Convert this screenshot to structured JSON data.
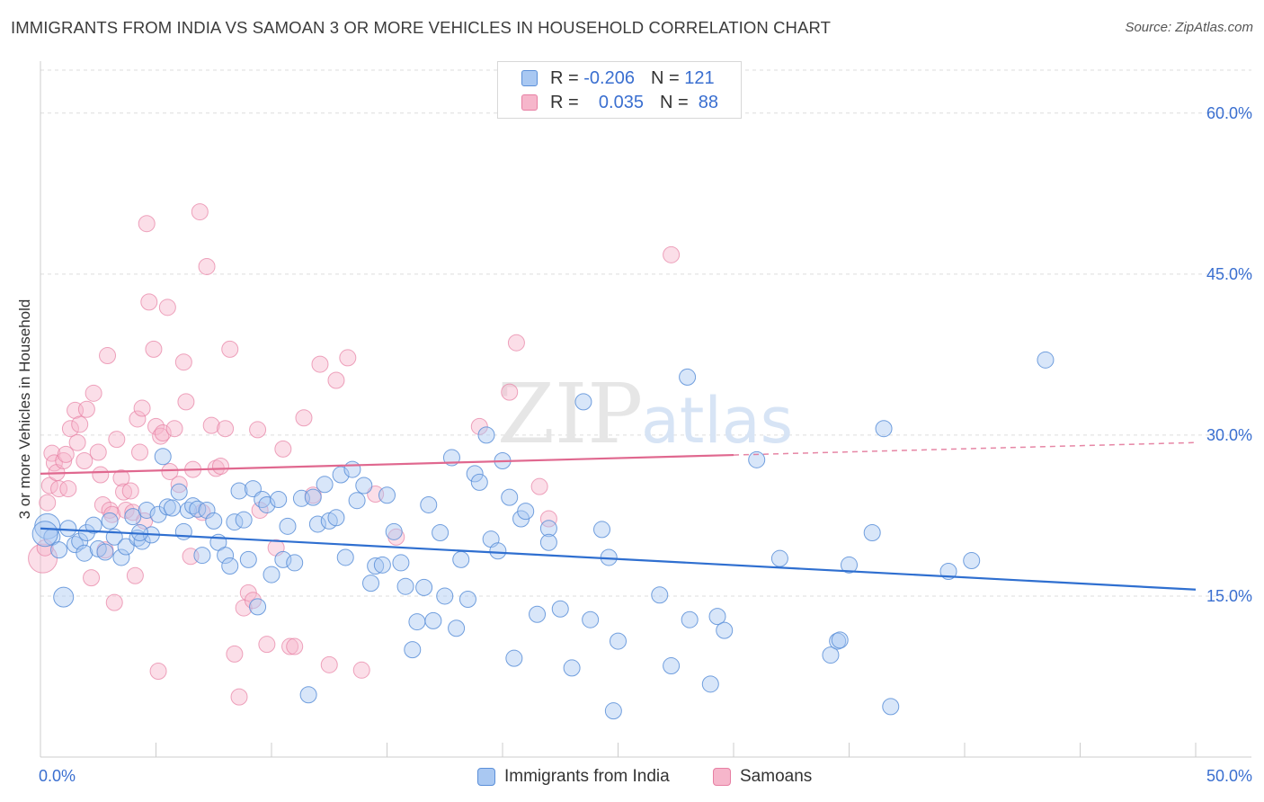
{
  "title": "IMMIGRANTS FROM INDIA VS SAMOAN 3 OR MORE VEHICLES IN HOUSEHOLD CORRELATION CHART",
  "source": "Source: ZipAtlas.com",
  "watermark": {
    "zip": "ZIP",
    "atlas": "atlas"
  },
  "legend": {
    "r_label": "R =",
    "n_label": "N =",
    "rows": [
      {
        "r": "-0.206",
        "n": "121"
      },
      {
        "r": "0.035",
        "n": "88"
      }
    ]
  },
  "colors": {
    "india_fill": "#a9c8f2",
    "india_stroke": "#5b8fd8",
    "india_line": "#2f6fd0",
    "samoan_fill": "#f6b6cb",
    "samoan_stroke": "#e77fa3",
    "samoan_line": "#e0688f",
    "tick_label": "#3a6fd0",
    "grid": "#dddddd"
  },
  "chart_data": {
    "type": "scatter",
    "title": "IMMIGRANTS FROM INDIA VS SAMOAN 3 OR MORE VEHICLES IN HOUSEHOLD CORRELATION CHART",
    "xlabel": "",
    "ylabel": "3 or more Vehicles in Household",
    "xlim": [
      0,
      50
    ],
    "ylim": [
      0,
      64
    ],
    "x_tick_labels": [
      "0.0%",
      "50.0%"
    ],
    "y_ticks": [
      15,
      30,
      45,
      60
    ],
    "y_tick_labels": [
      "15.0%",
      "30.0%",
      "45.0%",
      "60.0%"
    ],
    "grid": true,
    "legend_position": "top-center",
    "series": [
      {
        "name": "Immigrants from India",
        "r": -0.206,
        "n": 121,
        "trend": {
          "x": [
            0,
            50
          ],
          "y": [
            21.3,
            15.6
          ],
          "dashed_from": null
        },
        "points": [
          [
            0.3,
            21.5
          ],
          [
            0.5,
            20.5
          ],
          [
            0.8,
            19.3
          ],
          [
            1.0,
            14.9
          ],
          [
            1.2,
            21.3
          ],
          [
            1.5,
            19.8
          ],
          [
            1.7,
            20.1
          ],
          [
            1.9,
            19.0
          ],
          [
            2.0,
            20.9
          ],
          [
            2.3,
            21.6
          ],
          [
            2.5,
            19.4
          ],
          [
            2.8,
            19.1
          ],
          [
            3.0,
            22.0
          ],
          [
            3.2,
            20.5
          ],
          [
            3.5,
            18.6
          ],
          [
            3.7,
            19.6
          ],
          [
            4.0,
            22.4
          ],
          [
            4.2,
            20.4
          ],
          [
            4.4,
            20.1
          ],
          [
            4.6,
            23.0
          ],
          [
            4.8,
            20.7
          ],
          [
            5.1,
            22.6
          ],
          [
            5.3,
            28.0
          ],
          [
            5.5,
            23.3
          ],
          [
            5.7,
            23.2
          ],
          [
            6.0,
            24.7
          ],
          [
            6.2,
            21.0
          ],
          [
            6.4,
            23.0
          ],
          [
            6.6,
            23.4
          ],
          [
            6.8,
            23.1
          ],
          [
            7.0,
            18.8
          ],
          [
            7.2,
            23.0
          ],
          [
            7.5,
            22.0
          ],
          [
            7.7,
            20.0
          ],
          [
            8.0,
            18.8
          ],
          [
            8.2,
            17.8
          ],
          [
            8.4,
            21.9
          ],
          [
            8.6,
            24.8
          ],
          [
            8.8,
            22.1
          ],
          [
            9.0,
            18.4
          ],
          [
            9.2,
            25.0
          ],
          [
            9.4,
            14.0
          ],
          [
            9.6,
            24.0
          ],
          [
            9.8,
            23.5
          ],
          [
            10.0,
            17.0
          ],
          [
            10.3,
            24.0
          ],
          [
            10.5,
            18.4
          ],
          [
            10.7,
            21.5
          ],
          [
            11.0,
            18.1
          ],
          [
            11.3,
            24.1
          ],
          [
            11.6,
            5.8
          ],
          [
            11.8,
            24.2
          ],
          [
            12.0,
            21.7
          ],
          [
            12.3,
            25.4
          ],
          [
            12.5,
            22.0
          ],
          [
            12.8,
            22.3
          ],
          [
            13.0,
            26.3
          ],
          [
            13.2,
            18.6
          ],
          [
            13.5,
            26.8
          ],
          [
            13.7,
            23.9
          ],
          [
            14.0,
            25.3
          ],
          [
            14.3,
            16.2
          ],
          [
            14.5,
            17.8
          ],
          [
            14.8,
            17.9
          ],
          [
            15.0,
            24.4
          ],
          [
            15.3,
            21.0
          ],
          [
            15.6,
            18.1
          ],
          [
            15.8,
            15.9
          ],
          [
            16.1,
            10.0
          ],
          [
            16.3,
            12.6
          ],
          [
            16.6,
            15.8
          ],
          [
            16.8,
            23.5
          ],
          [
            17.0,
            12.7
          ],
          [
            17.3,
            20.9
          ],
          [
            17.5,
            15.0
          ],
          [
            17.8,
            27.9
          ],
          [
            18.0,
            12.0
          ],
          [
            18.2,
            18.4
          ],
          [
            18.5,
            14.7
          ],
          [
            18.8,
            26.4
          ],
          [
            19.0,
            25.6
          ],
          [
            19.3,
            30.0
          ],
          [
            19.5,
            20.3
          ],
          [
            19.8,
            19.2
          ],
          [
            20.0,
            27.6
          ],
          [
            20.3,
            24.2
          ],
          [
            20.5,
            9.2
          ],
          [
            20.8,
            22.2
          ],
          [
            21.0,
            22.9
          ],
          [
            21.5,
            13.3
          ],
          [
            22.0,
            21.3
          ],
          [
            22.0,
            20.0
          ],
          [
            22.5,
            13.8
          ],
          [
            23.0,
            8.3
          ],
          [
            23.5,
            33.1
          ],
          [
            23.8,
            12.8
          ],
          [
            24.3,
            21.2
          ],
          [
            24.6,
            18.6
          ],
          [
            24.8,
            4.3
          ],
          [
            25.0,
            10.8
          ],
          [
            26.8,
            15.1
          ],
          [
            27.3,
            8.5
          ],
          [
            28.0,
            35.4
          ],
          [
            28.1,
            12.8
          ],
          [
            29.0,
            6.8
          ],
          [
            29.3,
            13.1
          ],
          [
            29.6,
            11.8
          ],
          [
            31.0,
            27.7
          ],
          [
            32.0,
            18.5
          ],
          [
            34.2,
            9.5
          ],
          [
            34.5,
            10.8
          ],
          [
            34.6,
            10.9
          ],
          [
            35.0,
            17.9
          ],
          [
            36.0,
            20.9
          ],
          [
            36.5,
            30.6
          ],
          [
            36.8,
            4.7
          ],
          [
            39.3,
            17.3
          ],
          [
            40.3,
            18.3
          ],
          [
            43.5,
            37.0
          ],
          [
            4.3,
            20.9
          ],
          [
            0.2,
            20.8
          ]
        ]
      },
      {
        "name": "Samoans",
        "r": 0.035,
        "n": 88,
        "trend": {
          "x": [
            0,
            50
          ],
          "y": [
            26.4,
            29.3
          ],
          "dashed_from": 30
        },
        "points": [
          [
            0.1,
            18.5
          ],
          [
            0.3,
            23.7
          ],
          [
            0.4,
            25.3
          ],
          [
            0.5,
            28.3
          ],
          [
            0.6,
            27.4
          ],
          [
            0.7,
            26.5
          ],
          [
            0.8,
            25.0
          ],
          [
            1.0,
            27.6
          ],
          [
            1.1,
            28.2
          ],
          [
            1.2,
            25.0
          ],
          [
            1.3,
            30.6
          ],
          [
            1.5,
            32.3
          ],
          [
            1.6,
            29.3
          ],
          [
            1.7,
            31.0
          ],
          [
            1.9,
            27.6
          ],
          [
            2.0,
            32.4
          ],
          [
            2.2,
            16.7
          ],
          [
            2.3,
            33.9
          ],
          [
            2.5,
            28.4
          ],
          [
            2.6,
            26.3
          ],
          [
            2.7,
            23.5
          ],
          [
            2.8,
            19.3
          ],
          [
            2.9,
            37.4
          ],
          [
            3.0,
            23.0
          ],
          [
            3.1,
            22.6
          ],
          [
            3.2,
            14.4
          ],
          [
            3.3,
            29.6
          ],
          [
            3.5,
            26.0
          ],
          [
            3.6,
            24.7
          ],
          [
            3.7,
            23.0
          ],
          [
            3.9,
            24.8
          ],
          [
            4.0,
            22.8
          ],
          [
            4.1,
            16.9
          ],
          [
            4.2,
            31.5
          ],
          [
            4.3,
            28.4
          ],
          [
            4.4,
            32.5
          ],
          [
            4.5,
            22.0
          ],
          [
            4.6,
            49.7
          ],
          [
            4.7,
            42.4
          ],
          [
            4.9,
            38.0
          ],
          [
            5.0,
            30.8
          ],
          [
            5.1,
            8.0
          ],
          [
            5.2,
            29.9
          ],
          [
            5.3,
            30.2
          ],
          [
            5.5,
            41.9
          ],
          [
            5.6,
            26.6
          ],
          [
            5.8,
            30.6
          ],
          [
            6.0,
            25.4
          ],
          [
            6.2,
            36.8
          ],
          [
            6.3,
            33.1
          ],
          [
            6.5,
            18.7
          ],
          [
            6.6,
            26.8
          ],
          [
            6.9,
            50.8
          ],
          [
            7.0,
            22.8
          ],
          [
            7.2,
            45.7
          ],
          [
            7.4,
            30.9
          ],
          [
            7.6,
            26.9
          ],
          [
            7.8,
            27.1
          ],
          [
            8.0,
            30.6
          ],
          [
            8.2,
            38.0
          ],
          [
            8.4,
            9.6
          ],
          [
            8.6,
            5.6
          ],
          [
            8.8,
            13.9
          ],
          [
            9.0,
            15.3
          ],
          [
            9.2,
            14.6
          ],
          [
            9.4,
            30.5
          ],
          [
            9.5,
            23.0
          ],
          [
            9.8,
            10.5
          ],
          [
            10.2,
            19.5
          ],
          [
            10.5,
            28.7
          ],
          [
            10.8,
            10.3
          ],
          [
            11.0,
            10.3
          ],
          [
            11.4,
            31.6
          ],
          [
            11.8,
            24.4
          ],
          [
            12.1,
            36.6
          ],
          [
            12.5,
            8.6
          ],
          [
            12.8,
            35.1
          ],
          [
            13.3,
            37.2
          ],
          [
            13.9,
            8.1
          ],
          [
            14.5,
            24.5
          ],
          [
            15.4,
            20.5
          ],
          [
            19.0,
            30.8
          ],
          [
            20.3,
            34.0
          ],
          [
            20.6,
            38.6
          ],
          [
            21.6,
            25.2
          ],
          [
            22.0,
            22.2
          ],
          [
            27.3,
            46.8
          ],
          [
            0.2,
            19.5
          ]
        ]
      }
    ]
  },
  "bottom_legend": {
    "items": [
      {
        "label": "Immigrants from India"
      },
      {
        "label": "Samoans"
      }
    ]
  }
}
